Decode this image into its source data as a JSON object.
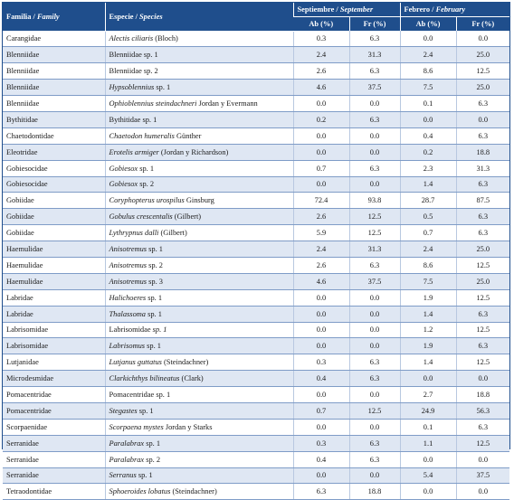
{
  "header": {
    "familia": "Familia / ",
    "familia_en": "Family",
    "especie": "Especie / ",
    "especie_en": "Species",
    "sep": "Septiembre / ",
    "sep_en": "September",
    "feb": "Febrero / ",
    "feb_en": "February",
    "ab": "Ab (%)",
    "fr": "Fr (%)"
  },
  "rows": [
    {
      "family": "Carangidae",
      "sp_it": "Alectis ciliaris",
      "sp_rest": " (Bloch)",
      "sp_pre": "",
      "v": [
        "0.3",
        "6.3",
        "0.0",
        "0.0"
      ]
    },
    {
      "family": "Blenniidae",
      "sp_it": "",
      "sp_rest": "",
      "sp_pre": "Blenniidae sp. 1",
      "v": [
        "2.4",
        "31.3",
        "2.4",
        "25.0"
      ]
    },
    {
      "family": "Blenniidae",
      "sp_it": "",
      "sp_rest": "",
      "sp_pre": "Blenniidae sp. 2",
      "v": [
        "2.6",
        "6.3",
        "8.6",
        "12.5"
      ]
    },
    {
      "family": "Blenniidae",
      "sp_it": "Hypsoblennius",
      "sp_rest": " sp. 1",
      "sp_pre": "",
      "v": [
        "4.6",
        "37.5",
        "7.5",
        "25.0"
      ]
    },
    {
      "family": "Blenniidae",
      "sp_it": "Ophioblennius steindachneri",
      "sp_rest": " Jordan y Evermann",
      "sp_pre": "",
      "v": [
        "0.0",
        "0.0",
        "0.1",
        "6.3"
      ]
    },
    {
      "family": "Bythitidae",
      "sp_it": "",
      "sp_rest": "",
      "sp_pre": "Bythitidae sp. 1",
      "v": [
        "0.2",
        "6.3",
        "0.0",
        "0.0"
      ]
    },
    {
      "family": "Chaetodontidae",
      "sp_it": "Chaetodon humeralis",
      "sp_rest": " Günther",
      "sp_pre": "",
      "v": [
        "0.0",
        "0.0",
        "0.4",
        "6.3"
      ]
    },
    {
      "family": "Eleotridae",
      "sp_it": "Erotelis armiger",
      "sp_rest": " (Jordan y Richardson)",
      "sp_pre": "",
      "v": [
        "0.0",
        "0.0",
        "0.2",
        "18.8"
      ]
    },
    {
      "family": "Gobiesocidae",
      "sp_it": "Gobiesox",
      "sp_rest": " sp. 1",
      "sp_pre": "",
      "v": [
        "0.7",
        "6.3",
        "2.3",
        "31.3"
      ]
    },
    {
      "family": "Gobiesocidae",
      "sp_it": "Gobiesox",
      "sp_rest": " sp. 2",
      "sp_pre": "",
      "v": [
        "0.0",
        "0.0",
        "1.4",
        "6.3"
      ]
    },
    {
      "family": "Gobiidae",
      "sp_it": "Coryphopterus urospilus",
      "sp_rest": " Ginsburg",
      "sp_pre": "",
      "v": [
        "72.4",
        "93.8",
        "28.7",
        "87.5"
      ]
    },
    {
      "family": "Gobiidae",
      "sp_it": "Gobulus crescentalis",
      "sp_rest": " (Gilbert)",
      "sp_pre": "",
      "v": [
        "2.6",
        "12.5",
        "0.5",
        "6.3"
      ]
    },
    {
      "family": "Gobiidae",
      "sp_it": "Lythrypnus dalli",
      "sp_rest": " (Gilbert)",
      "sp_pre": "",
      "v": [
        "5.9",
        "12.5",
        "0.7",
        "6.3"
      ]
    },
    {
      "family": "Haemulidae",
      "sp_it": "Anisotremus",
      "sp_rest": " sp. 1",
      "sp_pre": "",
      "v": [
        "2.4",
        "31.3",
        "2.4",
        "25.0"
      ]
    },
    {
      "family": "Haemulidae",
      "sp_it": "Anisotremus",
      "sp_rest": " sp. 2",
      "sp_pre": "",
      "v": [
        "2.6",
        "6.3",
        "8.6",
        "12.5"
      ]
    },
    {
      "family": "Haemulidae",
      "sp_it": "Anisotremus",
      "sp_rest": " sp. 3",
      "sp_pre": "",
      "v": [
        "4.6",
        "37.5",
        "7.5",
        "25.0"
      ]
    },
    {
      "family": "Labridae",
      "sp_it": "Halichoeres",
      "sp_rest": " sp. 1",
      "sp_pre": "",
      "v": [
        "0.0",
        "0.0",
        "1.9",
        "12.5"
      ]
    },
    {
      "family": "Labridae",
      "sp_it": "Thalassoma",
      "sp_rest": " sp. 1",
      "sp_pre": "",
      "v": [
        "0.0",
        "0.0",
        "1.4",
        "6.3"
      ]
    },
    {
      "family": "Labrisomidae",
      "sp_it": "sp. 1",
      "sp_rest": "",
      "sp_pre": "Labrisomidae ",
      "v": [
        "0.0",
        "0.0",
        "1.2",
        "12.5"
      ]
    },
    {
      "family": "Labrisomidae",
      "sp_it": "Labrisomus",
      "sp_rest": " sp. 1",
      "sp_pre": "",
      "v": [
        "0.0",
        "0.0",
        "1.9",
        "6.3"
      ]
    },
    {
      "family": "Lutjanidae",
      "sp_it": "Lutjanus guttatus",
      "sp_rest": " (Steindachner)",
      "sp_pre": "",
      "v": [
        "0.3",
        "6.3",
        "1.4",
        "12.5"
      ]
    },
    {
      "family": "Microdesmidae",
      "sp_it": "Clarkichthys bilineatus",
      "sp_rest": " (Clark)",
      "sp_pre": "",
      "v": [
        "0.4",
        "6.3",
        "0.0",
        "0.0"
      ]
    },
    {
      "family": "Pomacentridae",
      "sp_it": "",
      "sp_rest": "",
      "sp_pre": "Pomacentridae sp. 1",
      "v": [
        "0.0",
        "0.0",
        "2.7",
        "18.8"
      ]
    },
    {
      "family": "Pomacentridae",
      "sp_it": "Stegastes",
      "sp_rest": " sp. 1",
      "sp_pre": "",
      "v": [
        "0.7",
        "12.5",
        "24.9",
        "56.3"
      ]
    },
    {
      "family": "Scorpaenidae",
      "sp_it": "Scorpaena mystes",
      "sp_rest": " Jordan y Starks",
      "sp_pre": "",
      "v": [
        "0.0",
        "0.0",
        "0.1",
        "6.3"
      ]
    },
    {
      "family": "Serranidae",
      "sp_it": "Paralabrax",
      "sp_rest": " sp. 1",
      "sp_pre": "",
      "v": [
        "0.3",
        "6.3",
        "1.1",
        "12.5"
      ]
    },
    {
      "family": "Serranidae",
      "sp_it": "Paralabrax",
      "sp_rest": " sp. 2",
      "sp_pre": "",
      "v": [
        "0.4",
        "6.3",
        "0.0",
        "0.0"
      ]
    },
    {
      "family": "Serranidae",
      "sp_it": "Serranus",
      "sp_rest": " sp. 1",
      "sp_pre": "",
      "v": [
        "0.0",
        "0.0",
        "5.4",
        "37.5"
      ]
    },
    {
      "family": "Tetraodontidae",
      "sp_it": "Sphoeroides lobatus",
      "sp_rest": " (Steindachner)",
      "sp_pre": "",
      "v": [
        "6.3",
        "18.8",
        "0.0",
        "0.0"
      ]
    }
  ]
}
